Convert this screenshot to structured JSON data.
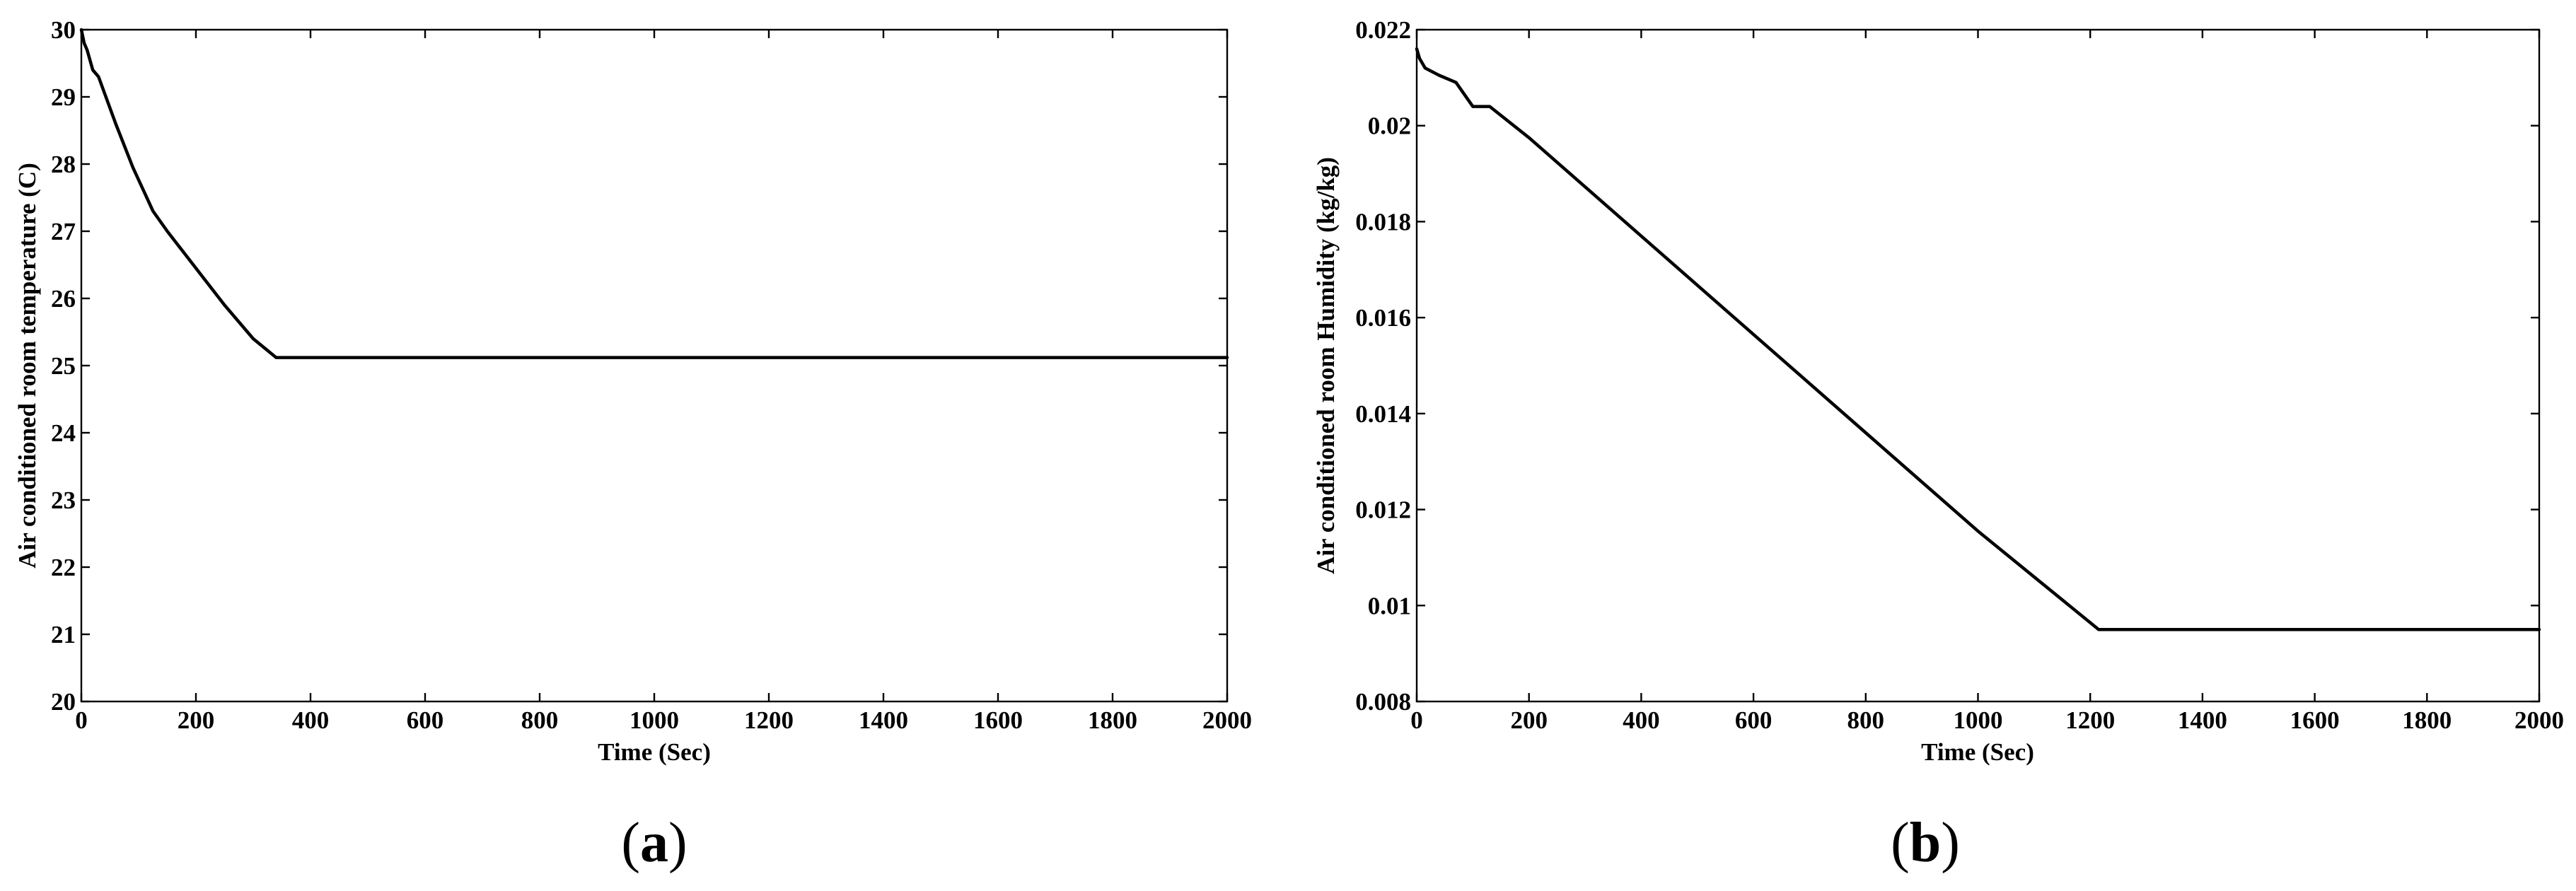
{
  "chart_data": [
    {
      "type": "line",
      "caption_open": "(",
      "caption_letter": "a",
      "caption_close": ")",
      "xlabel": "Time (Sec)",
      "ylabel": "Air conditioned room temperature (C)",
      "xlim": [
        0,
        2000
      ],
      "ylim": [
        20,
        30
      ],
      "xticks": [
        0,
        200,
        400,
        600,
        800,
        1000,
        1200,
        1400,
        1600,
        1800,
        2000
      ],
      "yticks": [
        20,
        21,
        22,
        23,
        24,
        25,
        26,
        27,
        28,
        29,
        30
      ],
      "ytick_labels": [
        "20",
        "21",
        "22",
        "23",
        "24",
        "25",
        "26",
        "27",
        "28",
        "29",
        "30"
      ],
      "grid": false,
      "series": [
        {
          "color": "#000000",
          "x": [
            0,
            5,
            10,
            20,
            30,
            60,
            90,
            125,
            150,
            200,
            250,
            300,
            340,
            345,
            400,
            1000,
            1500,
            2000
          ],
          "y": [
            30,
            29.8,
            29.7,
            29.4,
            29.3,
            28.6,
            27.95,
            27.3,
            27.0,
            26.45,
            25.9,
            25.4,
            25.12,
            25.12,
            25.12,
            25.12,
            25.12,
            25.12
          ]
        }
      ]
    },
    {
      "type": "line",
      "caption_open": "(",
      "caption_letter": "b",
      "caption_close": ")",
      "xlabel": "Time (Sec)",
      "ylabel": "Air conditioned room Humidity (kg/kg)",
      "xlim": [
        0,
        2000
      ],
      "ylim": [
        0.008,
        0.022
      ],
      "xticks": [
        0,
        200,
        400,
        600,
        800,
        1000,
        1200,
        1400,
        1600,
        1800,
        2000
      ],
      "yticks": [
        0.008,
        0.01,
        0.012,
        0.014,
        0.016,
        0.018,
        0.02,
        0.022
      ],
      "ytick_labels": [
        "0.008",
        "0.01",
        "0.012",
        "0.014",
        "0.016",
        "0.018",
        "0.02",
        "0.022"
      ],
      "grid": false,
      "series": [
        {
          "color": "#000000",
          "x": [
            0,
            5,
            15,
            40,
            70,
            100,
            130,
            200,
            400,
            600,
            800,
            1000,
            1215,
            1220,
            1400,
            1600,
            1800,
            2000
          ],
          "y": [
            0.0216,
            0.0214,
            0.0212,
            0.02105,
            0.0209,
            0.0204,
            0.0204,
            0.01975,
            0.0177,
            0.01565,
            0.0136,
            0.01155,
            0.0095,
            0.0095,
            0.0095,
            0.0095,
            0.0095,
            0.0095
          ]
        }
      ]
    }
  ]
}
